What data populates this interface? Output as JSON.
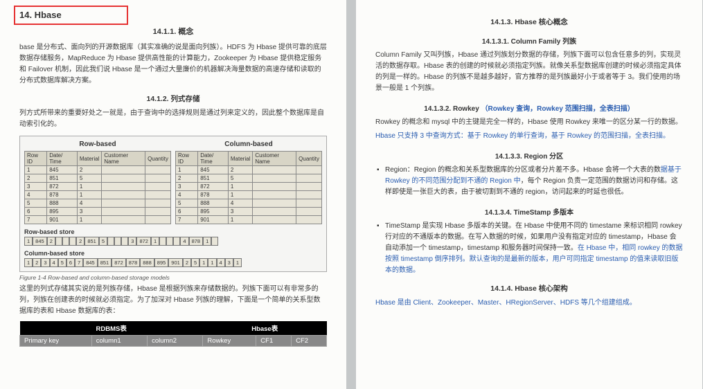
{
  "left": {
    "h1": "14.  Hbase",
    "s1": {
      "title": "14.1.1.  概念",
      "p1": "base 是分布式、面向列的开源数据库（其实准确的说是面向列族）。HDFS 为 Hbase 提供可靠的底层数据存储服务，MapReduce 为 Hbase 提供高性能的计算能力，Zookeeper 为 Hbase 提供稳定服务和 Failover 机制，因此我们说 Hbase 是一个通过大量廉价的机器解决海量数据的高速存储和读取的分布式数据库解决方案。"
    },
    "s2": {
      "title": "14.1.2.  列式存储",
      "p1": "列方式所带来的重要好处之一就是，由于查询中的选择规则是通过列来定义的，因此整个数据库是自动索引化的。",
      "figure": {
        "rowTitle": "Row-based",
        "colTitle": "Column-based",
        "headers": [
          "Row ID",
          "Date/ Time",
          "Material",
          "Customer Name",
          "Quantity"
        ],
        "rows": [
          [
            "1",
            "845",
            "2",
            "",
            ""
          ],
          [
            "2",
            "851",
            "5",
            "",
            ""
          ],
          [
            "3",
            "872",
            "1",
            "",
            ""
          ],
          [
            "4",
            "878",
            "1",
            "",
            ""
          ],
          [
            "5",
            "888",
            "4",
            "",
            ""
          ],
          [
            "6",
            "895",
            "3",
            "",
            ""
          ],
          [
            "7",
            "901",
            "1",
            "",
            ""
          ]
        ],
        "rowStoreLabel": "Row-based store",
        "rowStoreCells": [
          "1",
          "845",
          "2",
          "",
          "",
          "",
          "2",
          "851",
          "5",
          "",
          "",
          "",
          "3",
          "872",
          "1",
          "",
          "",
          "",
          "4",
          "878",
          "1",
          ""
        ],
        "colStoreLabel": "Column-based store",
        "colStoreCells": [
          "1",
          "2",
          "3",
          "4",
          "5",
          "6",
          "7",
          "845",
          "851",
          "872",
          "878",
          "888",
          "895",
          "901",
          "2",
          "5",
          "1",
          "1",
          "4",
          "3",
          "1"
        ],
        "caption": "Figure 1-4   Row-based and column-based storage models"
      },
      "p2": "这里的列式存储其实说的是列族存储，Hbase 是根据列族来存储数据的。列族下面可以有非常多的列，列族在创建表的时候就必须指定。为了加深对 Hbase 列族的理解，下面是一个简单的关系型数据库的表和 Hbase 数据库的表：",
      "cmp": {
        "h1": "RDBMS表",
        "h2": "Hbase表",
        "r1": [
          "Primary key",
          "column1",
          "column2",
          "Rowkey",
          "CF1",
          "CF2"
        ]
      }
    }
  },
  "right": {
    "s3": {
      "title": "14.1.3.  Hbase 核心概念"
    },
    "cf": {
      "title": "14.1.3.1.  Column Family 列族",
      "p": "Column Family 又叫列族，Hbase 通过列族划分数据的存储，列族下面可以包含任意多的列，实现灵活的数据存取。Hbase 表的创建的时候就必须指定列族。就像关系型数据库创建的时候必须指定具体的列是一样的。Hbase 的列族不是越多越好，官方推荐的是列族最好小于或者等于 3。我们使用的场景一般是 1 个列族。"
    },
    "rk": {
      "title": "14.1.3.2.  Rowkey",
      "titleLink": "（Rowkey 查询，Rowkey 范围扫描，全表扫描）",
      "p1": "Rowkey 的概念和 mysql 中的主键是完全一样的，Hbase 使用 Rowkey 来唯一的区分某一行的数据。",
      "p2": "Hbase 只支持 3 中查询方式：基于 Rowkey 的单行查询，基于 Rowkey 的范围扫描，全表扫描。"
    },
    "rg": {
      "title": "14.1.3.3.  Region 分区",
      "li1a": "Region：Region 的概念和关系型数据库的分区或者分片差不多。Hbase 会将一个大表的数",
      "li1b": "据基于 Rowkey 的不同范围分配到不通的 Region 中",
      "li1c": "，每个 Region 负责一定范围的数据访问和存储。这样即使是一张巨大的表，由于被切割到不通的 region，访问起来的时延也很低。"
    },
    "ts": {
      "title": "14.1.3.4.  TimeStamp 多版本",
      "li1a": "TimeStamp 是实现 Hbase 多版本的关键。在 Hbase 中使用不同的 timestame 来标识相同 rowkey 行对应的不通版本的数据。在写入数据的时候，如果用户没有指定对应的 timestamp，Hbase 会自动添加一个 timestamp，timestamp 和服务器时间保持一致。",
      "li1b": "在 Hbase 中，相同 rowkey 的数据按照 timestamp 倒序排列。默认查询的是最新的版本，用户可同指定 timestamp 的值来读取旧版本的数据。"
    },
    "arch": {
      "title": "14.1.4.  Hbase 核心架构",
      "p": "Hbase 是由 Client、Zookeeper、Master、HRegionServer、HDFS 等几个组建组成。"
    }
  }
}
